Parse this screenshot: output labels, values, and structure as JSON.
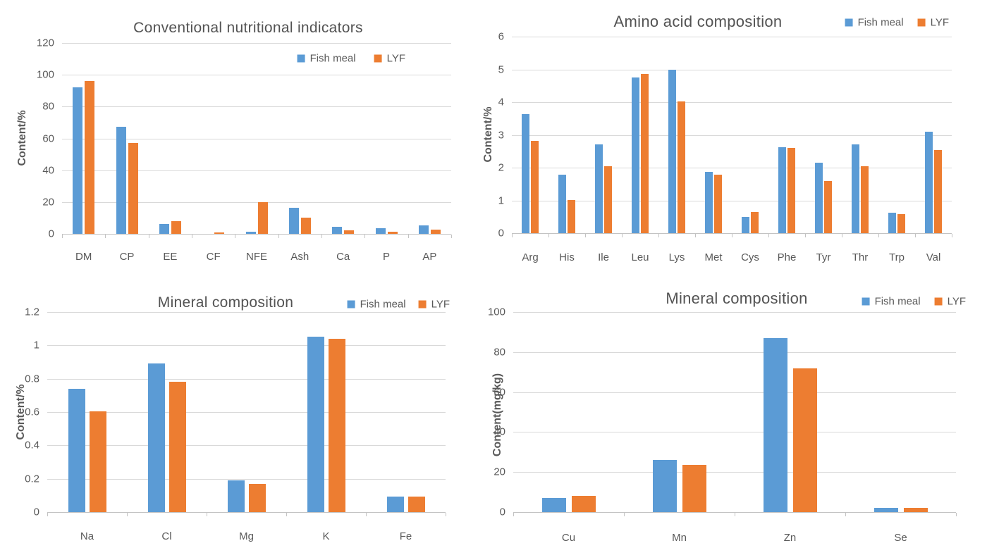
{
  "palette": {
    "fish_meal": "#5B9BD5",
    "lyf": "#ED7D31",
    "text": "#595959",
    "title": "#535353",
    "gridline": "#D9D9D9",
    "axis": "#C3C3C3",
    "background": "#FFFFFF"
  },
  "chart_data": [
    {
      "id": "conventional-nutritional-indicators",
      "type": "bar",
      "title": "Conventional nutritional indicators",
      "xlabel": "",
      "ylabel": "Content/%",
      "categories": [
        "DM",
        "CP",
        "EE",
        "CF",
        "NFE",
        "Ash",
        "Ca",
        "P",
        "AP"
      ],
      "series": [
        {
          "name": "Fish meal",
          "color": "#5B9BD5",
          "values": [
            92.3,
            67.5,
            6.4,
            0,
            1.5,
            16.4,
            4.3,
            3.7,
            5.2
          ]
        },
        {
          "name": "LYF",
          "color": "#ED7D31",
          "values": [
            95.9,
            57.2,
            7.8,
            1.0,
            19.8,
            10.4,
            2.1,
            1.2,
            2.5
          ]
        }
      ],
      "ylim": [
        0,
        120
      ],
      "yticks": [
        "0",
        "20",
        "40",
        "60",
        "80",
        "100",
        "120"
      ],
      "grid": true,
      "legend_position": "inset-top-right"
    },
    {
      "id": "amino-acid-composition",
      "type": "bar",
      "title": "Amino acid composition",
      "xlabel": "",
      "ylabel": "Content/%",
      "categories": [
        "Arg",
        "His",
        "Ile",
        "Leu",
        "Lys",
        "Met",
        "Cys",
        "Phe",
        "Tyr",
        "Thr",
        "Trp",
        "Val"
      ],
      "series": [
        {
          "name": "Fish meal",
          "color": "#5B9BD5",
          "values": [
            3.63,
            1.78,
            2.72,
            4.75,
            4.98,
            1.88,
            0.49,
            2.62,
            2.15,
            2.7,
            0.62,
            3.1
          ]
        },
        {
          "name": "LYF",
          "color": "#ED7D31",
          "values": [
            2.81,
            1.0,
            2.04,
            4.86,
            4.02,
            1.78,
            0.64,
            2.6,
            1.59,
            2.04,
            0.57,
            2.54
          ]
        }
      ],
      "ylim": [
        0,
        6
      ],
      "yticks": [
        "0",
        "1",
        "2",
        "3",
        "4",
        "5",
        "6"
      ],
      "grid": true,
      "legend_position": "header-right"
    },
    {
      "id": "mineral-composition-percent",
      "type": "bar",
      "title": "Mineral composition",
      "xlabel": "",
      "ylabel": "Content/%",
      "categories": [
        "Na",
        "Cl",
        "Mg",
        "K",
        "Fe"
      ],
      "series": [
        {
          "name": "Fish meal",
          "color": "#5B9BD5",
          "values": [
            0.74,
            0.89,
            0.19,
            1.05,
            0.095
          ]
        },
        {
          "name": "LYF",
          "color": "#ED7D31",
          "values": [
            0.605,
            0.78,
            0.17,
            1.04,
            0.095
          ]
        }
      ],
      "ylim": [
        0,
        1.2
      ],
      "yticks": [
        "0",
        "0.2",
        "0.4",
        "0.6",
        "0.8",
        "1",
        "1.2"
      ],
      "grid": true,
      "legend_position": "header-right"
    },
    {
      "id": "mineral-composition-mgkg",
      "type": "bar",
      "title": "Mineral composition",
      "xlabel": "",
      "ylabel": "Content(mg/kg)",
      "categories": [
        "Cu",
        "Mn",
        "Zn",
        "Se"
      ],
      "series": [
        {
          "name": "Fish meal",
          "color": "#5B9BD5",
          "values": [
            7,
            26,
            87,
            2
          ]
        },
        {
          "name": "LYF",
          "color": "#ED7D31",
          "values": [
            8,
            23.5,
            72,
            2
          ]
        }
      ],
      "ylim": [
        0,
        100
      ],
      "yticks": [
        "0",
        "20",
        "40",
        "60",
        "80",
        "100"
      ],
      "grid": true,
      "legend_position": "header-right"
    }
  ]
}
